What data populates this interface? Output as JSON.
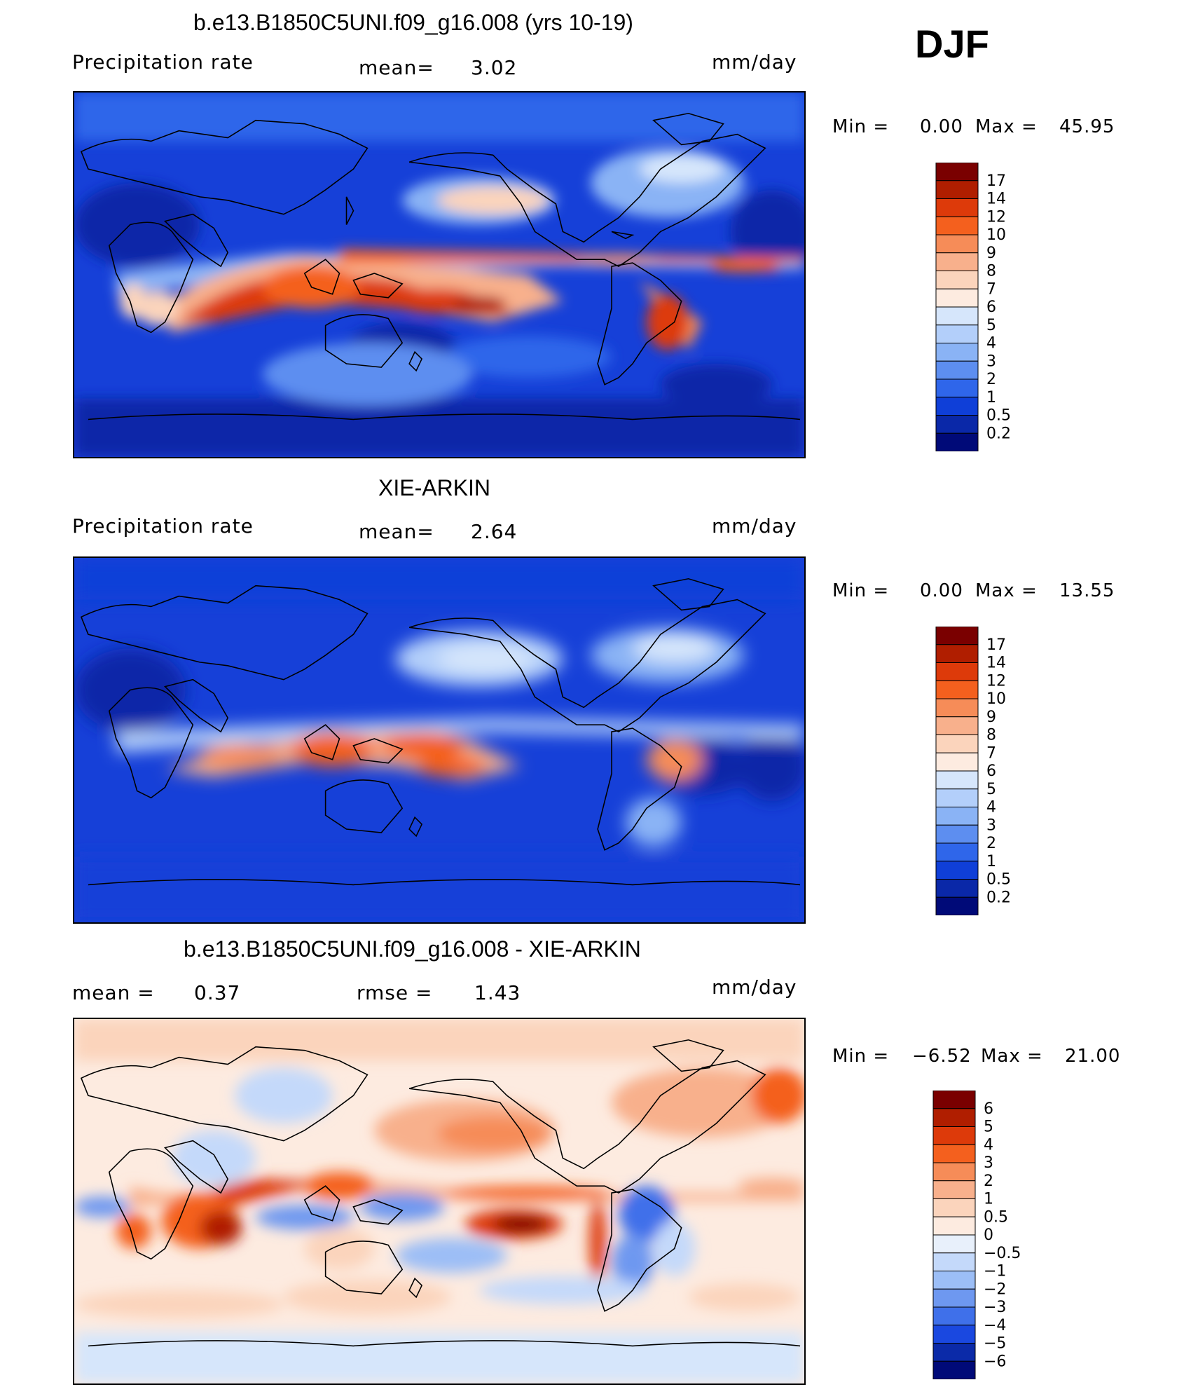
{
  "season": "DJF",
  "panels": [
    {
      "title": "b.e13.B1850C5UNI.f09_g16.008 (yrs 10-19)",
      "left_label": "Precipitation  rate",
      "stat1": "mean=",
      "stat1_value": "3.02",
      "units": "mm/day",
      "min_label": "Min  =",
      "min_value": "0.00",
      "max_label": "Max  =",
      "max_value": "45.95",
      "colorbar": [
        "17",
        "14",
        "12",
        "10",
        "9",
        "8",
        "7",
        "6",
        "5",
        "4",
        "3",
        "2",
        "1",
        "0.5",
        "0.2"
      ],
      "colors": [
        "#7a0000",
        "#b01e00",
        "#dd3a0a",
        "#f4601e",
        "#f68c58",
        "#f8b08c",
        "#fbd4bc",
        "#fdebe0",
        "#d6e6fb",
        "#b3cffa",
        "#8ab3f5",
        "#5d8ef0",
        "#2f66ea",
        "#0f3fd8",
        "#0a28a8",
        "#000a78"
      ]
    },
    {
      "title": "XIE-ARKIN",
      "left_label": "Precipitation  rate",
      "stat1": "mean=",
      "stat1_value": "2.64",
      "units": "mm/day",
      "min_label": "Min  =",
      "min_value": "0.00",
      "max_label": "Max  =",
      "max_value": "13.55",
      "colorbar": [
        "17",
        "14",
        "12",
        "10",
        "9",
        "8",
        "7",
        "6",
        "5",
        "4",
        "3",
        "2",
        "1",
        "0.5",
        "0.2"
      ],
      "colors": [
        "#7a0000",
        "#b01e00",
        "#dd3a0a",
        "#f4601e",
        "#f68c58",
        "#f8b08c",
        "#fbd4bc",
        "#fdebe0",
        "#d6e6fb",
        "#b3cffa",
        "#8ab3f5",
        "#5d8ef0",
        "#2f66ea",
        "#0f3fd8",
        "#0a28a8",
        "#000a78"
      ]
    },
    {
      "title": "b.e13.B1850C5UNI.f09_g16.008 - XIE-ARKIN",
      "left_label": "mean  =",
      "left_value": "0.37",
      "stat1": "rmse  =",
      "stat1_value": "1.43",
      "units": "mm/day",
      "min_label": "Min  =",
      "min_value": "−6.52",
      "max_label": "Max  =",
      "max_value": "21.00",
      "colorbar": [
        "6",
        "5",
        "4",
        "3",
        "2",
        "1",
        "0.5",
        "0",
        "−0.5",
        "−1",
        "−2",
        "−3",
        "−4",
        "−5",
        "−6"
      ],
      "colors": [
        "#7a0000",
        "#b01e00",
        "#dd3a0a",
        "#f4601e",
        "#f68c58",
        "#f8b08c",
        "#fbd4bc",
        "#fdebe0",
        "#e8f0fb",
        "#c4d9fa",
        "#9cbef6",
        "#6e98f0",
        "#3f70ea",
        "#1a48e0",
        "#0b2aa8",
        "#000a78"
      ]
    }
  ]
}
